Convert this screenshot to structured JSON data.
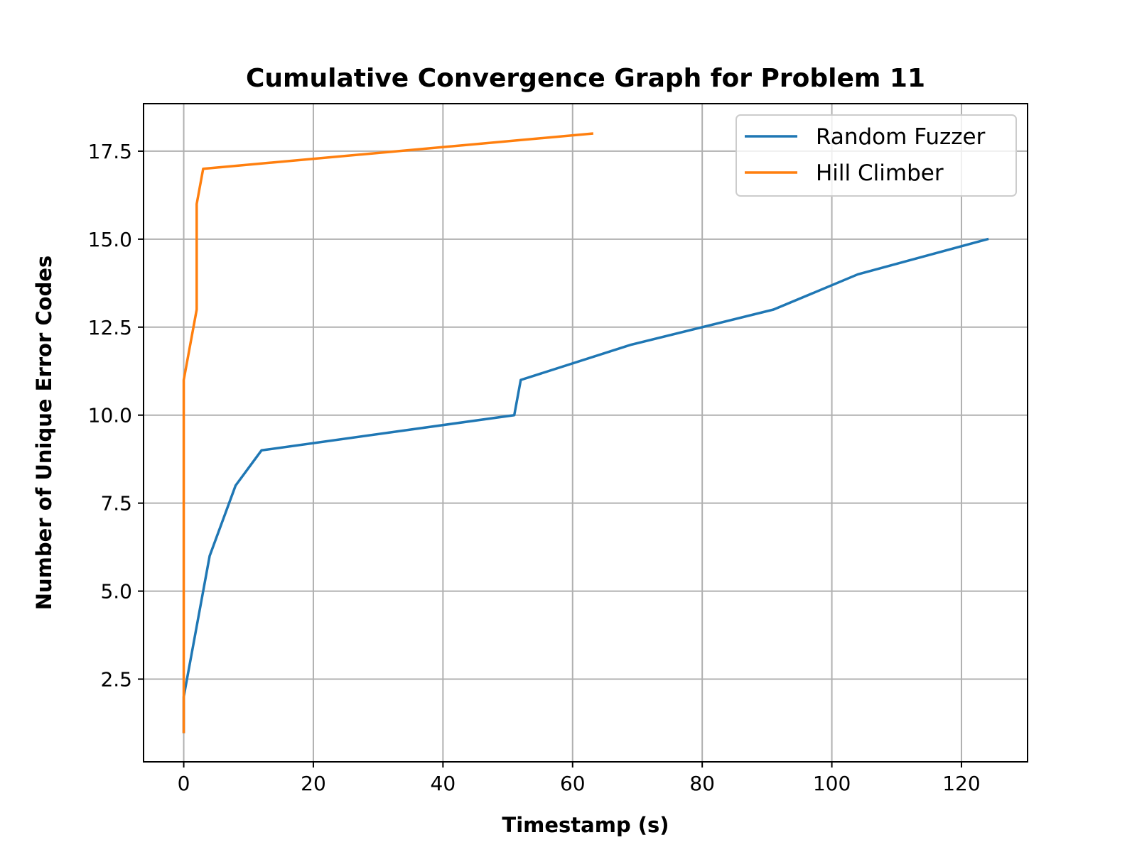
{
  "chart_data": {
    "type": "line",
    "title": "Cumulative Convergence Graph for Problem 11",
    "xlabel": "Timestamp (s)",
    "ylabel": "Number of Unique Error Codes",
    "xlim": [
      -6.2,
      130.2
    ],
    "ylim": [
      0.15,
      18.85
    ],
    "xticks": [
      0,
      20,
      40,
      60,
      80,
      100,
      120
    ],
    "xtick_labels": [
      "0",
      "20",
      "40",
      "60",
      "80",
      "100",
      "120"
    ],
    "yticks": [
      2.5,
      5.0,
      7.5,
      10.0,
      12.5,
      15.0,
      17.5
    ],
    "ytick_labels": [
      "2.5",
      "5.0",
      "7.5",
      "10.0",
      "12.5",
      "15.0",
      "17.5"
    ],
    "grid": true,
    "legend_position": "top-right",
    "series": [
      {
        "name": "Random Fuzzer",
        "color": "#1f77b4",
        "x": [
          0,
          0,
          4,
          8,
          12,
          51,
          52,
          69,
          91,
          104,
          124
        ],
        "y": [
          1,
          2,
          6,
          8,
          9,
          10,
          11,
          12,
          13,
          14,
          15
        ]
      },
      {
        "name": "Hill Climber",
        "color": "#ff7f0e",
        "x": [
          0,
          0,
          0,
          2,
          2,
          3,
          63
        ],
        "y": [
          1,
          2,
          11,
          13,
          16,
          17,
          18
        ]
      }
    ]
  }
}
